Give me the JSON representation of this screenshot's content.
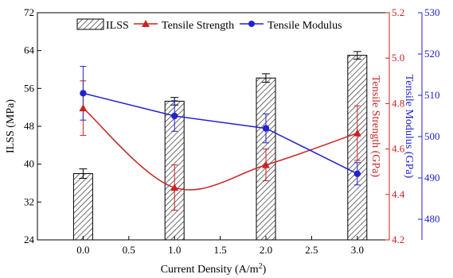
{
  "chart_data": {
    "type": "bar",
    "title": "",
    "xlabel": "Current Density (A/m²)",
    "x_ticks": [
      "0.0",
      "0.5",
      "1.0",
      "1.5",
      "2.0",
      "2.5",
      "3.0"
    ],
    "xlim": [
      -0.5,
      3.35
    ],
    "grid": false,
    "legend_position": "top",
    "axes": {
      "left": {
        "label": "ILSS (MPa)",
        "ylim": [
          24,
          72
        ],
        "ticks": [
          "24",
          "32",
          "40",
          "48",
          "56",
          "64",
          "72"
        ],
        "color": "#000000"
      },
      "right1": {
        "label": "Tensile Strength (GPa)",
        "ylim": [
          4.2,
          5.2
        ],
        "ticks": [
          "4.2",
          "4.4",
          "4.6",
          "4.8",
          "5.0",
          "5.2"
        ],
        "color": "#cc2222"
      },
      "right2": {
        "label": "Tensile Modulus (GPa)",
        "ylim": [
          475,
          530
        ],
        "ticks": [
          "480",
          "490",
          "500",
          "510",
          "520",
          "530"
        ],
        "color": "#2222cc"
      }
    },
    "series": [
      {
        "name": "ILSS",
        "type": "bar",
        "axis": "left",
        "x": [
          0.0,
          1.0,
          2.0,
          3.0
        ],
        "values": [
          38.0,
          53.3,
          58.2,
          63.0
        ],
        "errors": [
          1.0,
          0.8,
          0.9,
          0.8
        ],
        "color": "#000000"
      },
      {
        "name": "Tensile Strength",
        "type": "line",
        "axis": "right1",
        "x": [
          0.0,
          1.0,
          2.0,
          3.0
        ],
        "values": [
          4.78,
          4.43,
          4.53,
          4.67
        ],
        "errors": [
          0.12,
          0.1,
          0.07,
          0.12
        ],
        "color": "#cc2222",
        "marker": "triangle"
      },
      {
        "name": "Tensile Modulus",
        "type": "line",
        "axis": "right2",
        "x": [
          0.0,
          1.0,
          2.0,
          3.0
        ],
        "values": [
          510.5,
          505.0,
          502.0,
          491.0
        ],
        "errors": [
          6.5,
          3.7,
          3.5,
          2.7
        ],
        "color": "#2222cc",
        "marker": "circle"
      }
    ]
  }
}
